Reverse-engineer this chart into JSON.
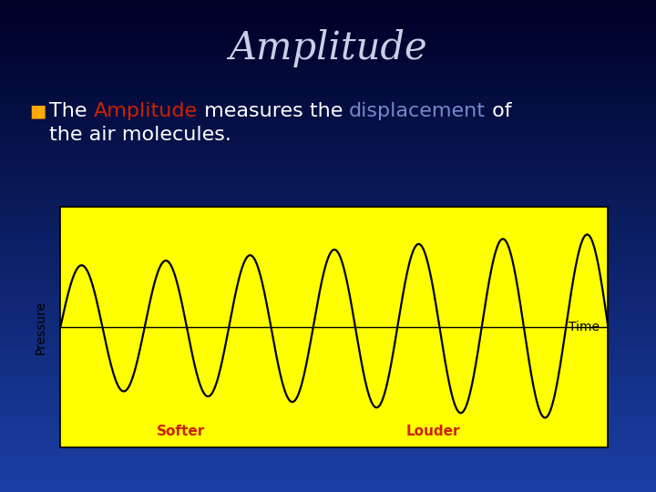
{
  "title": "Amplitude",
  "title_color": "#c8d0e8",
  "title_fontsize": 30,
  "bg_top": "#000820",
  "bg_mid": "#0a1e6e",
  "bg_bottom": "#1a3a9a",
  "bullet_color": "#ffaa00",
  "text_white": "#ffffff",
  "text_red": "#cc2200",
  "text_blue": "#7788cc",
  "chart_bg": "#ffff00",
  "wave_color": "#000000",
  "wave_linewidth": 1.6,
  "label_pressure": "Pressure",
  "label_time": "Time",
  "label_softer": "Softer",
  "label_louder": "Louder",
  "label_color_softer": "#cc2200",
  "label_color_louder": "#cc2200",
  "softer_amplitude": 0.42,
  "louder_amplitude": 0.95,
  "transition_sharpness": 0.4,
  "n_cycles": 6.5,
  "fontsize_bullet": 16,
  "fontsize_chart_label": 10,
  "fontsize_softer_louder": 11
}
